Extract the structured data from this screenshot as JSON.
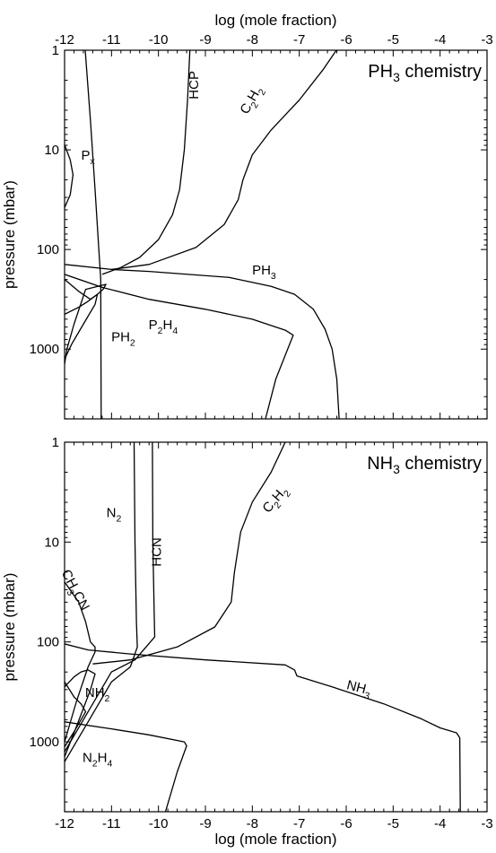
{
  "chart_data": [
    {
      "type": "line",
      "title": "PH3 chemistry",
      "title_parts": [
        {
          "t": "PH"
        },
        {
          "t": "3",
          "sub": true
        },
        {
          "t": " chemistry"
        }
      ],
      "xlabel": "log (mole fraction)",
      "ylabel": "pressure (mbar)",
      "xlim": [
        -12,
        -3
      ],
      "ylim_log10": [
        0,
        3.7
      ],
      "y_scale": "log",
      "x_ticks": [
        -12,
        -11,
        -10,
        -9,
        -8,
        -7,
        -6,
        -5,
        -4,
        -3
      ],
      "x_tick_labels": [
        "-12",
        "-11",
        "-10",
        "-9",
        "-8",
        "-7",
        "-6",
        "-5",
        "-4",
        "-3"
      ],
      "y_ticks": [
        1,
        10,
        100,
        1000
      ],
      "y_tick_labels": [
        "1",
        "10",
        "100",
        "1000"
      ],
      "series": [
        {
          "name": "HCP",
          "points": [
            [
              -9.33,
              0
            ],
            [
              -9.38,
              0.5
            ],
            [
              -9.45,
              1.0
            ],
            [
              -9.55,
              1.4
            ],
            [
              -9.7,
              1.65
            ],
            [
              -10.0,
              1.9
            ],
            [
              -10.4,
              2.08
            ],
            [
              -10.8,
              2.18
            ],
            [
              -11.2,
              2.25
            ]
          ]
        },
        {
          "name": "C2H2",
          "points": [
            [
              -6.21,
              0
            ],
            [
              -6.5,
              0.2
            ],
            [
              -7.0,
              0.5
            ],
            [
              -7.6,
              0.8
            ],
            [
              -8.0,
              1.05
            ],
            [
              -8.2,
              1.3
            ],
            [
              -8.3,
              1.5
            ],
            [
              -8.6,
              1.75
            ],
            [
              -9.2,
              1.98
            ],
            [
              -10.2,
              2.15
            ],
            [
              -11.0,
              2.2
            ]
          ]
        },
        {
          "name": "Px",
          "points": [
            [
              -11.56,
              0
            ],
            [
              -11.45,
              0.7
            ],
            [
              -11.35,
              1.4
            ],
            [
              -11.27,
              2.0
            ],
            [
              -11.23,
              2.3
            ],
            [
              -11.22,
              3.7
            ]
          ]
        },
        {
          "name": "PH3",
          "points": [
            [
              -12,
              2.15
            ],
            [
              -11.0,
              2.2
            ],
            [
              -10.2,
              2.22
            ],
            [
              -8.5,
              2.28
            ],
            [
              -7.6,
              2.37
            ],
            [
              -7.1,
              2.45
            ],
            [
              -6.7,
              2.6
            ],
            [
              -6.45,
              2.8
            ],
            [
              -6.3,
              3.0
            ],
            [
              -6.2,
              3.3
            ],
            [
              -6.15,
              3.7
            ]
          ]
        },
        {
          "name": "P2H4",
          "points": [
            [
              -12,
              2.25
            ],
            [
              -11.2,
              2.38
            ],
            [
              -10.2,
              2.5
            ],
            [
              -9.0,
              2.6
            ],
            [
              -8.0,
              2.7
            ],
            [
              -7.3,
              2.81
            ],
            [
              -7.13,
              2.86
            ],
            [
              -7.5,
              3.3
            ],
            [
              -7.72,
              3.7
            ]
          ]
        },
        {
          "name": "PH2",
          "points": [
            [
              -12,
              2.65
            ],
            [
              -11.7,
              2.58
            ],
            [
              -11.5,
              2.52
            ],
            [
              -11.3,
              2.45
            ],
            [
              -11.18,
              2.4
            ],
            [
              -11.12,
              2.35
            ],
            [
              -11.55,
              2.4
            ],
            [
              -11.8,
              2.75
            ],
            [
              -11.95,
              3.0
            ],
            [
              -12,
              3.15
            ]
          ]
        },
        {
          "name": "",
          "points": [
            [
              -12,
              2.3
            ],
            [
              -11.7,
              2.42
            ],
            [
              -11.45,
              2.5
            ],
            [
              -11.3,
              2.45
            ],
            [
              -11.35,
              2.55
            ],
            [
              -11.6,
              2.75
            ],
            [
              -11.85,
              2.95
            ],
            [
              -12,
              3.1
            ]
          ]
        },
        {
          "name": "",
          "points": [
            [
              -12,
              0.95
            ],
            [
              -11.88,
              1.1
            ],
            [
              -11.82,
              1.25
            ],
            [
              -11.88,
              1.45
            ],
            [
              -12,
              1.58
            ]
          ]
        }
      ],
      "labels": [
        {
          "text": [
            {
              "t": "P"
            },
            {
              "t": "x",
              "sub": true
            }
          ],
          "x": -11.5,
          "y": 1.1
        },
        {
          "text": [
            {
              "t": "HCP"
            }
          ],
          "x": -9.15,
          "y": 0.35,
          "rotate": -90
        },
        {
          "text": [
            {
              "t": "C"
            },
            {
              "t": "2",
              "sub": true
            },
            {
              "t": "H"
            },
            {
              "t": "2",
              "sub": true
            }
          ],
          "x": -7.95,
          "y": 0.52,
          "rotate": -60
        },
        {
          "text": [
            {
              "t": "PH"
            },
            {
              "t": "3",
              "sub": true
            }
          ],
          "x": -7.75,
          "y": 2.25
        },
        {
          "text": [
            {
              "t": "P"
            },
            {
              "t": "2",
              "sub": true
            },
            {
              "t": "H"
            },
            {
              "t": "4",
              "sub": true
            }
          ],
          "x": -9.9,
          "y": 2.8
        },
        {
          "text": [
            {
              "t": "PH"
            },
            {
              "t": "2",
              "sub": true
            }
          ],
          "x": -10.75,
          "y": 2.92
        }
      ]
    },
    {
      "type": "line",
      "title": "NH3 chemistry",
      "title_parts": [
        {
          "t": "NH"
        },
        {
          "t": "3",
          "sub": true
        },
        {
          "t": " chemistry"
        }
      ],
      "xlabel": "log (mole fraction)",
      "ylabel": "pressure (mbar)",
      "xlim": [
        -12,
        -3
      ],
      "ylim_log10": [
        0,
        3.7
      ],
      "y_scale": "log",
      "x_ticks": [
        -12,
        -11,
        -10,
        -9,
        -8,
        -7,
        -6,
        -5,
        -4,
        -3
      ],
      "x_tick_labels": [
        "-12",
        "-11",
        "-10",
        "-9",
        "-8",
        "-7",
        "-6",
        "-5",
        "-4",
        "-3"
      ],
      "y_ticks": [
        1,
        10,
        100,
        1000
      ],
      "y_tick_labels": [
        "1",
        "10",
        "100",
        "1000"
      ],
      "series": [
        {
          "name": "N2",
          "points": [
            [
              -10.52,
              0
            ],
            [
              -10.5,
              1.0
            ],
            [
              -10.47,
              1.8
            ],
            [
              -10.45,
              2.05
            ],
            [
              -10.6,
              2.25
            ],
            [
              -11.0,
              2.4
            ],
            [
              -11.5,
              2.8
            ],
            [
              -12,
              3.2
            ]
          ]
        },
        {
          "name": "HCN",
          "points": [
            [
              -10.13,
              0
            ],
            [
              -10.12,
              1.0
            ],
            [
              -10.09,
              1.75
            ],
            [
              -10.08,
              1.95
            ],
            [
              -10.5,
              2.18
            ],
            [
              -11.0,
              2.3
            ],
            [
              -11.5,
              2.7
            ],
            [
              -12,
              3.1
            ]
          ]
        },
        {
          "name": "C2H2",
          "points": [
            [
              -7.3,
              0
            ],
            [
              -7.6,
              0.3
            ],
            [
              -8.0,
              0.6
            ],
            [
              -8.25,
              0.9
            ],
            [
              -8.38,
              1.3
            ],
            [
              -8.45,
              1.6
            ],
            [
              -8.8,
              1.85
            ],
            [
              -9.6,
              2.05
            ],
            [
              -10.6,
              2.18
            ],
            [
              -11.4,
              2.22
            ]
          ]
        },
        {
          "name": "CH3CN",
          "points": [
            [
              -12,
              1.4
            ],
            [
              -11.7,
              1.6
            ],
            [
              -11.55,
              1.8
            ],
            [
              -11.45,
              2.0
            ],
            [
              -11.35,
              2.05
            ],
            [
              -11.35,
              2.1
            ],
            [
              -11.5,
              2.25
            ],
            [
              -11.75,
              2.6
            ],
            [
              -12,
              3.0
            ]
          ]
        },
        {
          "name": "NH3",
          "points": [
            [
              -12,
              2.02
            ],
            [
              -11.5,
              2.08
            ],
            [
              -10.6,
              2.12
            ],
            [
              -9.0,
              2.18
            ],
            [
              -7.3,
              2.23
            ],
            [
              -7.1,
              2.28
            ],
            [
              -7.05,
              2.34
            ],
            [
              -6.3,
              2.45
            ],
            [
              -5.2,
              2.62
            ],
            [
              -4.4,
              2.77
            ],
            [
              -4.0,
              2.86
            ],
            [
              -3.65,
              2.91
            ],
            [
              -3.58,
              2.96
            ],
            [
              -3.57,
              3.7
            ]
          ]
        },
        {
          "name": "NH2",
          "points": [
            [
              -12,
              2.45
            ],
            [
              -11.8,
              2.35
            ],
            [
              -11.65,
              2.3
            ],
            [
              -11.5,
              2.28
            ],
            [
              -11.35,
              2.32
            ],
            [
              -11.45,
              2.48
            ],
            [
              -11.75,
              2.85
            ],
            [
              -12,
              3.15
            ]
          ]
        },
        {
          "name": "N2H4",
          "points": [
            [
              -12,
              2.8
            ],
            [
              -11.0,
              2.87
            ],
            [
              -10.2,
              2.93
            ],
            [
              -9.45,
              3.0
            ],
            [
              -9.4,
              3.04
            ],
            [
              -9.6,
              3.3
            ],
            [
              -9.85,
              3.7
            ]
          ]
        },
        {
          "name": "",
          "points": [
            [
              -12,
              2.4
            ],
            [
              -11.8,
              2.55
            ],
            [
              -11.65,
              2.62
            ],
            [
              -11.55,
              2.7
            ],
            [
              -11.8,
              2.9
            ],
            [
              -12,
              3.05
            ]
          ]
        }
      ],
      "labels": [
        {
          "text": [
            {
              "t": "N"
            },
            {
              "t": "2",
              "sub": true
            }
          ],
          "x": -10.95,
          "y": 0.75
        },
        {
          "text": [
            {
              "t": "HCN"
            }
          ],
          "x": -9.95,
          "y": 1.1,
          "rotate": -90
        },
        {
          "text": [
            {
              "t": "C"
            },
            {
              "t": "2",
              "sub": true
            },
            {
              "t": "H"
            },
            {
              "t": "2",
              "sub": true
            }
          ],
          "x": -7.45,
          "y": 0.6,
          "rotate": -50
        },
        {
          "text": [
            {
              "t": "CH"
            },
            {
              "t": "3",
              "sub": true
            },
            {
              "t": "CN"
            }
          ],
          "x": -11.85,
          "y": 1.5,
          "rotate": 62
        },
        {
          "text": [
            {
              "t": "NH"
            },
            {
              "t": "3",
              "sub": true
            }
          ],
          "x": -5.75,
          "y": 2.5,
          "rotate": 14
        },
        {
          "text": [
            {
              "t": "NH"
            },
            {
              "t": "2",
              "sub": true
            }
          ],
          "x": -11.3,
          "y": 2.55
        },
        {
          "text": [
            {
              "t": "N"
            },
            {
              "t": "2",
              "sub": true
            },
            {
              "t": "H"
            },
            {
              "t": "4",
              "sub": true
            }
          ],
          "x": -11.3,
          "y": 3.2
        }
      ]
    }
  ]
}
